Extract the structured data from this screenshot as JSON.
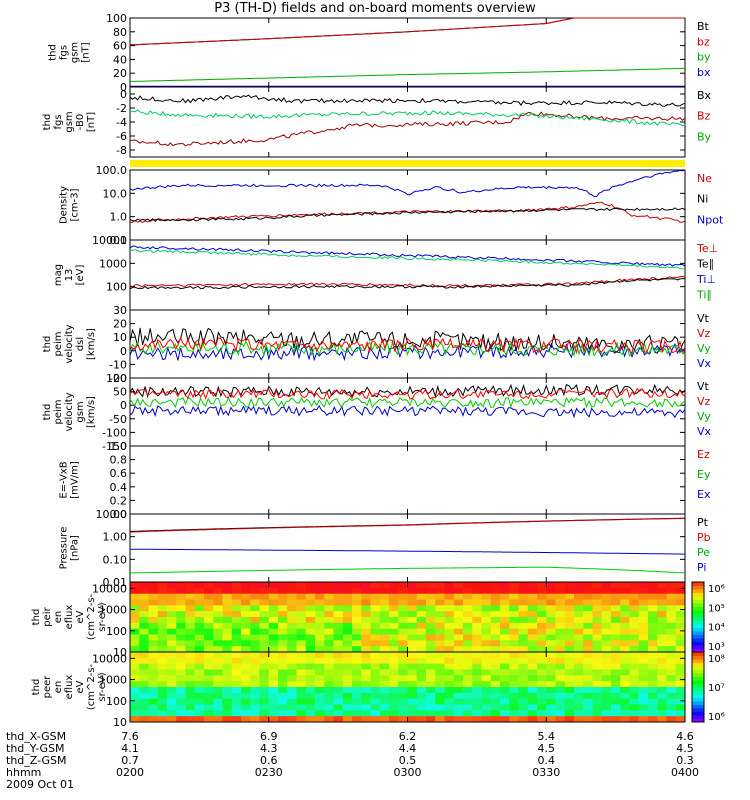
{
  "title": "P3 (TH-D) fields and on-board moments overview",
  "chart_data": {
    "type": "line",
    "x": [
      "0200",
      "0230",
      "0300",
      "0330",
      "0400"
    ],
    "xrange": [
      "02:00",
      "04:00"
    ],
    "panels": [
      {
        "id": "fgs",
        "ylabel": [
          "thd",
          "fgs",
          "gsm",
          "[nT]"
        ],
        "ylim": [
          0,
          100
        ],
        "ticks": [
          "0",
          "20",
          "40",
          "60",
          "80",
          "100"
        ],
        "scale": "linear",
        "legend": [
          "Bt",
          "bz",
          "by",
          "bx"
        ],
        "legend_colors": [
          "#000000",
          "#cc0000",
          "#00aa00",
          "#0000cc"
        ],
        "series": [
          {
            "name": "Bt",
            "color": "#000000",
            "values": [
              [
                0,
                61
              ],
              [
                0.25,
                70
              ],
              [
                0.5,
                80
              ],
              [
                0.75,
                92
              ],
              [
                0.8,
                100
              ],
              [
                1,
                100
              ]
            ]
          },
          {
            "name": "bz",
            "color": "#cc0000",
            "values": [
              [
                0,
                61
              ],
              [
                0.25,
                70
              ],
              [
                0.5,
                80
              ],
              [
                0.75,
                92
              ],
              [
                0.8,
                100
              ],
              [
                1,
                100
              ]
            ]
          },
          {
            "name": "by",
            "color": "#00aa00",
            "values": [
              [
                0,
                8
              ],
              [
                0.25,
                13
              ],
              [
                0.5,
                18
              ],
              [
                0.75,
                22
              ],
              [
                1,
                27
              ]
            ]
          },
          {
            "name": "bx",
            "color": "#0000cc",
            "values": [
              [
                0,
                1
              ],
              [
                0.5,
                1
              ],
              [
                1,
                1
              ]
            ]
          }
        ]
      },
      {
        "id": "fgs_zoom",
        "ylabel": [
          "thd",
          "fgs",
          "gsm",
          "-B0",
          "[nT]"
        ],
        "ylim": [
          -9,
          1
        ],
        "ticks": [
          "0",
          "-2",
          "-4",
          "-6",
          "-8"
        ],
        "scale": "linear",
        "legend": [
          "Bx",
          "Bz",
          "By"
        ],
        "legend_colors": [
          "#000000",
          "#cc0000",
          "#00aa00"
        ],
        "series": [
          {
            "name": "Bx",
            "color": "#000000",
            "values": [
              [
                0,
                -0.5
              ],
              [
                0.1,
                -1
              ],
              [
                0.2,
                -0.3
              ],
              [
                0.3,
                -1
              ],
              [
                0.5,
                -0.9
              ],
              [
                0.7,
                -1.3
              ],
              [
                0.85,
                -1.2
              ],
              [
                1,
                -1.6
              ]
            ]
          },
          {
            "name": "Bz",
            "color": "#990000",
            "values": [
              [
                0,
                -6.8
              ],
              [
                0.1,
                -7.2
              ],
              [
                0.25,
                -6.5
              ],
              [
                0.4,
                -4.5
              ],
              [
                0.55,
                -4.3
              ],
              [
                0.68,
                -4
              ],
              [
                0.72,
                -2.7
              ],
              [
                0.85,
                -3.5
              ],
              [
                1,
                -3.5
              ]
            ]
          },
          {
            "name": "By",
            "color": "#00cc66",
            "values": [
              [
                0,
                -2.5
              ],
              [
                0.1,
                -3
              ],
              [
                0.25,
                -3.2
              ],
              [
                0.4,
                -2.8
              ],
              [
                0.55,
                -2.7
              ],
              [
                0.7,
                -3
              ],
              [
                0.85,
                -3.6
              ],
              [
                1,
                -4.5
              ]
            ]
          }
        ]
      },
      {
        "id": "density",
        "ylabel": [
          "Density",
          "[cm-3]"
        ],
        "ylim": [
          0.1,
          100
        ],
        "ticks": [
          "0.1",
          "1.0",
          "10.0",
          "100.0"
        ],
        "scale": "log",
        "legend": [
          "Ne",
          "Ni",
          "Npot"
        ],
        "legend_colors": [
          "#cc0000",
          "#000000",
          "#0000cc"
        ],
        "series": [
          {
            "name": "Npot",
            "color": "#0000cc",
            "values": [
              [
                0,
                15
              ],
              [
                0.1,
                22
              ],
              [
                0.45,
                22
              ],
              [
                0.5,
                9
              ],
              [
                0.55,
                18
              ],
              [
                0.6,
                11
              ],
              [
                0.7,
                18
              ],
              [
                0.8,
                18
              ],
              [
                0.84,
                7
              ],
              [
                0.9,
                30
              ],
              [
                1,
                100
              ]
            ]
          },
          {
            "name": "Ne",
            "color": "#cc0000",
            "values": [
              [
                0,
                0.6
              ],
              [
                0.2,
                1.0
              ],
              [
                0.5,
                1.6
              ],
              [
                0.7,
                1.8
              ],
              [
                0.8,
                2.5
              ],
              [
                0.85,
                4
              ],
              [
                0.9,
                1.2
              ],
              [
                1,
                0.6
              ]
            ]
          },
          {
            "name": "Ni",
            "color": "#000000",
            "values": [
              [
                0,
                0.7
              ],
              [
                0.2,
                0.8
              ],
              [
                0.5,
                1.5
              ],
              [
                0.8,
                2.0
              ],
              [
                1,
                2.2
              ]
            ]
          }
        ]
      },
      {
        "id": "temp",
        "ylabel": [
          "mag",
          "13",
          "[eV]"
        ],
        "ylim": [
          10,
          10000
        ],
        "ticks": [
          "100",
          "1000",
          "10000"
        ],
        "scale": "log",
        "legend": [
          "Te⊥",
          "Te∥",
          "Ti⊥",
          "Ti∥"
        ],
        "legend_colors": [
          "#cc0000",
          "#000000",
          "#0000cc",
          "#00aa00"
        ],
        "series": [
          {
            "name": "Ti⊥",
            "color": "#0000cc",
            "values": [
              [
                0,
                5000
              ],
              [
                0.3,
                3000
              ],
              [
                0.6,
                1800
              ],
              [
                0.9,
                1000
              ],
              [
                1,
                800
              ]
            ]
          },
          {
            "name": "Ti∥",
            "color": "#00cc66",
            "values": [
              [
                0,
                3500
              ],
              [
                0.3,
                2200
              ],
              [
                0.6,
                1400
              ],
              [
                0.9,
                800
              ],
              [
                1,
                600
              ]
            ]
          },
          {
            "name": "Te⊥",
            "color": "#cc0000",
            "values": [
              [
                0,
                110
              ],
              [
                0.3,
                130
              ],
              [
                0.6,
                110
              ],
              [
                0.8,
                130
              ],
              [
                0.9,
                200
              ],
              [
                1,
                250
              ]
            ]
          },
          {
            "name": "Te∥",
            "color": "#000000",
            "values": [
              [
                0,
                90
              ],
              [
                0.3,
                100
              ],
              [
                0.6,
                100
              ],
              [
                0.8,
                120
              ],
              [
                0.9,
                180
              ],
              [
                1,
                200
              ]
            ]
          }
        ]
      },
      {
        "id": "peim_v",
        "ylabel": [
          "thd",
          "peim",
          "velocity",
          "dsl",
          "[km/s]"
        ],
        "ylim": [
          -20,
          30
        ],
        "ticks": [
          "-20",
          "-10",
          "0",
          "10",
          "20",
          "30"
        ],
        "scale": "linear",
        "legend": [
          "Vt",
          "Vz",
          "Vy",
          "Vx"
        ],
        "legend_colors": [
          "#000000",
          "#cc0000",
          "#00aa00",
          "#0000cc"
        ],
        "series": [
          {
            "name": "Vt",
            "color": "#000000",
            "values": [
              [
                0,
                10
              ],
              [
                0.5,
                8
              ],
              [
                1,
                4
              ]
            ]
          },
          {
            "name": "Vx",
            "color": "#0000cc",
            "values": [
              [
                0,
                -3
              ],
              [
                0.5,
                -1
              ],
              [
                1,
                1
              ]
            ]
          },
          {
            "name": "Vy",
            "color": "#00cc00",
            "values": [
              [
                0,
                2
              ],
              [
                0.5,
                2
              ],
              [
                1,
                1
              ]
            ]
          },
          {
            "name": "Vz",
            "color": "#ff0000",
            "values": [
              [
                0,
                5
              ],
              [
                0.5,
                4
              ],
              [
                1,
                3
              ]
            ]
          }
        ]
      },
      {
        "id": "peim_v_gsm",
        "ylabel": [
          "thd",
          "peim",
          "velocity",
          "gsm",
          "[km/s]"
        ],
        "ylim": [
          -150,
          100
        ],
        "ticks": [
          "-150",
          "-100",
          "-50",
          "0",
          "50",
          "100"
        ],
        "scale": "linear",
        "legend": [
          "Vt",
          "Vz",
          "Vy",
          "Vx"
        ],
        "legend_colors": [
          "#000000",
          "#cc0000",
          "#00aa00",
          "#0000cc"
        ],
        "series": [
          {
            "name": "Vt",
            "color": "#000000",
            "values": [
              [
                0,
                50
              ],
              [
                0.5,
                50
              ],
              [
                1,
                60
              ]
            ]
          },
          {
            "name": "Vx",
            "color": "#0000cc",
            "values": [
              [
                0,
                -20
              ],
              [
                0.5,
                -20
              ],
              [
                1,
                -30
              ]
            ]
          },
          {
            "name": "Vy",
            "color": "#00cc00",
            "values": [
              [
                0,
                10
              ],
              [
                0.5,
                10
              ],
              [
                1,
                10
              ]
            ]
          },
          {
            "name": "Vz",
            "color": "#ff0000",
            "values": [
              [
                0,
                40
              ],
              [
                0.5,
                40
              ],
              [
                1,
                45
              ]
            ]
          }
        ]
      },
      {
        "id": "efield",
        "ylabel": [
          "E=-VxB",
          "[mV/m]"
        ],
        "ylim": [
          0,
          1
        ],
        "ticks": [
          "0.0",
          "0.2",
          "0.4",
          "0.6",
          "0.8",
          "1.0"
        ],
        "scale": "linear",
        "legend": [
          "Ez",
          "Ey",
          "Ex"
        ],
        "legend_colors": [
          "#cc0000",
          "#00aa00",
          "#0000cc"
        ],
        "series": []
      },
      {
        "id": "pressure",
        "ylabel": [
          "Pressure",
          "[nPa]"
        ],
        "ylim": [
          0.01,
          10
        ],
        "ticks": [
          "0.01",
          "0.10",
          "1.00",
          "10.00"
        ],
        "scale": "log",
        "legend": [
          "Pt",
          "Pb",
          "Pe",
          "Pi"
        ],
        "legend_colors": [
          "#000000",
          "#cc0000",
          "#00aa00",
          "#0000cc"
        ],
        "series": [
          {
            "name": "Pt",
            "color": "#000000",
            "values": [
              [
                0,
                1.7
              ],
              [
                0.5,
                3.3
              ],
              [
                1,
                6.5
              ]
            ]
          },
          {
            "name": "Pb",
            "color": "#cc0000",
            "values": [
              [
                0,
                1.6
              ],
              [
                0.5,
                3.2
              ],
              [
                1,
                6.4
              ]
            ]
          },
          {
            "name": "Pi",
            "color": "#0000cc",
            "values": [
              [
                0,
                0.28
              ],
              [
                0.5,
                0.23
              ],
              [
                1,
                0.17
              ]
            ]
          },
          {
            "name": "Pe",
            "color": "#00cc00",
            "values": [
              [
                0,
                0.025
              ],
              [
                0.5,
                0.04
              ],
              [
                0.75,
                0.045
              ],
              [
                1,
                0.025
              ]
            ]
          }
        ]
      },
      {
        "id": "peir_spec",
        "type": "heatmap",
        "ylabel": [
          "thd",
          "peir",
          "en",
          "eflux",
          "eV",
          "(cm^2-s-",
          "sr-eV)"
        ],
        "ylim": [
          10,
          20000
        ],
        "ticks": [
          "10",
          "100",
          "1000",
          "10000"
        ],
        "scale": "log",
        "colorbar_ticks": [
          "10³",
          "10⁴",
          "10⁵",
          "10⁶"
        ]
      },
      {
        "id": "peer_spec",
        "type": "heatmap",
        "ylabel": [
          "thd",
          "peer",
          "en",
          "eflux",
          "eV",
          "(cm^2-s-",
          "sr-eV)"
        ],
        "ylim": [
          10,
          20000
        ],
        "ticks": [
          "10",
          "100",
          "1000",
          "10000"
        ],
        "scale": "log",
        "colorbar_ticks": [
          "10⁶",
          "10⁷",
          "10⁸"
        ]
      }
    ],
    "ephemeris": {
      "labels": [
        "thd_X-GSM",
        "thd_Y-GSM",
        "thd_Z-GSM",
        "hhmm",
        "2009 Oct 01"
      ],
      "rows": [
        [
          "7.6",
          "6.9",
          "6.2",
          "5.4",
          "4.6"
        ],
        [
          "4.1",
          "4.3",
          "4.4",
          "4.5",
          "4.5"
        ],
        [
          "0.7",
          "0.6",
          "0.5",
          "0.4",
          "0.3"
        ],
        [
          "0200",
          "0230",
          "0300",
          "0330",
          "0400"
        ]
      ]
    }
  }
}
